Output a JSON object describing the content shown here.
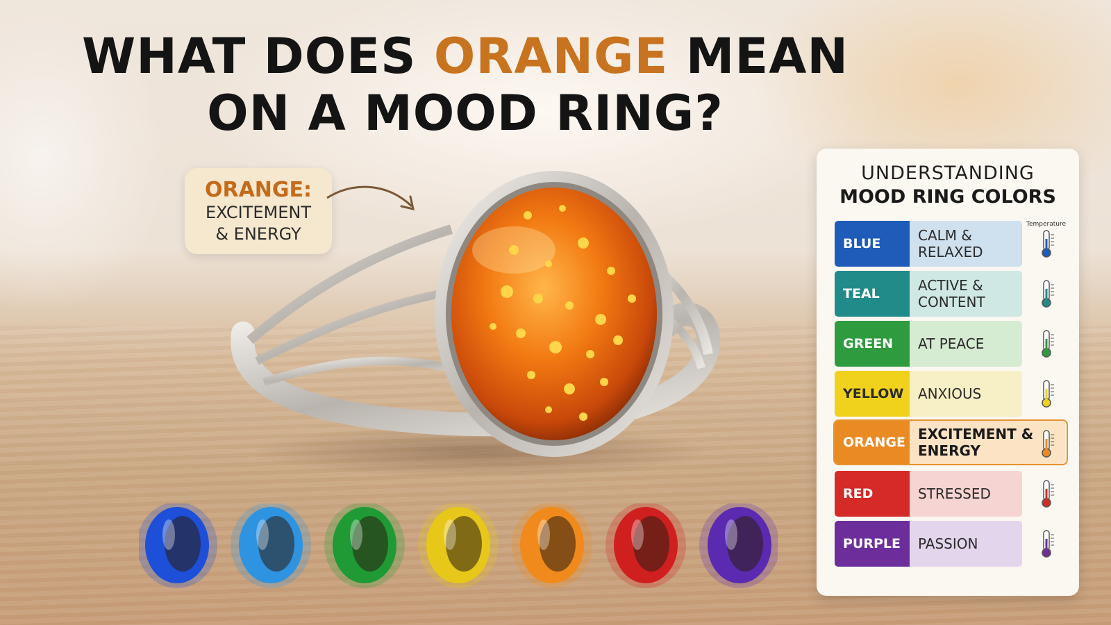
{
  "title": {
    "line1_pre": "WHAT DOES ",
    "line1_highlight": "ORANGE",
    "line1_post": " MEAN",
    "line2": "ON A MOOD RING?",
    "highlight_color": "#c8731f"
  },
  "callout": {
    "heading": "ORANGE:",
    "line1": "EXCITEMENT",
    "line2": "& ENERGY"
  },
  "panel": {
    "title_line1": "UNDERSTANDING",
    "title_line2": "MOOD RING COLORS",
    "temperature_label": "Temperature",
    "rows": [
      {
        "color": "BLUE",
        "mood": "CALM & RELAXED",
        "swatch_hex": "#1f5bb8",
        "bg_hex": "#cfe0ee",
        "thermo": "thermometer-icon"
      },
      {
        "color": "TEAL",
        "mood": "ACTIVE & CONTENT",
        "swatch_hex": "#218b8a",
        "bg_hex": "#cfe8e4",
        "thermo": "thermometer-icon"
      },
      {
        "color": "GREEN",
        "mood": "AT PEACE",
        "swatch_hex": "#2f9b3f",
        "bg_hex": "#d6ecd2",
        "thermo": "thermometer-icon"
      },
      {
        "color": "YELLOW",
        "mood": "ANXIOUS",
        "swatch_hex": "#f0d21c",
        "bg_hex": "#f7f0c6",
        "thermo": "thermometer-icon"
      },
      {
        "color": "ORANGE",
        "mood": "EXCITEMENT & ENERGY",
        "swatch_hex": "#ea8a23",
        "bg_hex": "#fbe3c4",
        "thermo": "thermometer-icon"
      },
      {
        "color": "RED",
        "mood": "STRESSED",
        "swatch_hex": "#d42a28",
        "bg_hex": "#f6d4d1",
        "thermo": "thermometer-icon"
      },
      {
        "color": "PURPLE",
        "mood": "PASSION",
        "swatch_hex": "#6c2e9b",
        "bg_hex": "#e3d6ec",
        "thermo": "thermometer-icon"
      }
    ]
  },
  "mini_rings": [
    {
      "name": "blue-ring",
      "hex": "#1d4fd8"
    },
    {
      "name": "sky-blue-ring",
      "hex": "#2e93e0"
    },
    {
      "name": "green-ring",
      "hex": "#1f9a34"
    },
    {
      "name": "yellow-ring",
      "hex": "#e8c71b"
    },
    {
      "name": "orange-ring",
      "hex": "#f08a1c"
    },
    {
      "name": "red-ring",
      "hex": "#d01f1f"
    },
    {
      "name": "purple-ring",
      "hex": "#5a2bb0"
    }
  ]
}
